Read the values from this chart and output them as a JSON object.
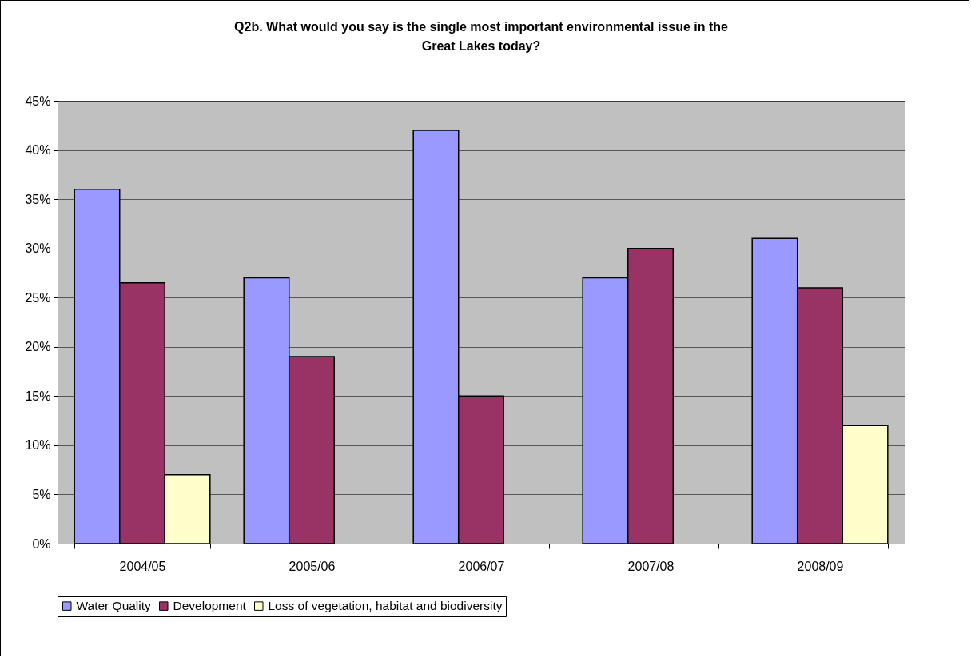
{
  "chart_data": {
    "type": "bar",
    "title": "Q2b. What would you say is the single most important environmental issue in the Great Lakes today?",
    "categories": [
      "2004/05",
      "2005/06",
      "2006/07",
      "2007/08",
      "2008/09"
    ],
    "series": [
      {
        "name": "Water Quality",
        "color": "#9999ff",
        "values": [
          36,
          27,
          42,
          27,
          31
        ]
      },
      {
        "name": "Development",
        "color": "#993366",
        "values": [
          26.5,
          19,
          15,
          30,
          26
        ]
      },
      {
        "name": "Loss of vegetation, habitat and biodiversity",
        "color": "#ffffcc",
        "values": [
          7,
          null,
          null,
          null,
          12
        ]
      }
    ],
    "ylim": [
      0,
      45
    ],
    "yticks": [
      {
        "value": 0,
        "label": "0%"
      },
      {
        "value": 5,
        "label": "5%"
      },
      {
        "value": 10,
        "label": "10%"
      },
      {
        "value": 15,
        "label": "15%"
      },
      {
        "value": 20,
        "label": "20%"
      },
      {
        "value": 25,
        "label": "25%"
      },
      {
        "value": 30,
        "label": "30%"
      },
      {
        "value": 35,
        "label": "35%"
      },
      {
        "value": 40,
        "label": "40%"
      },
      {
        "value": 45,
        "label": "45%"
      }
    ],
    "grid": "y",
    "legend": "bottom"
  }
}
